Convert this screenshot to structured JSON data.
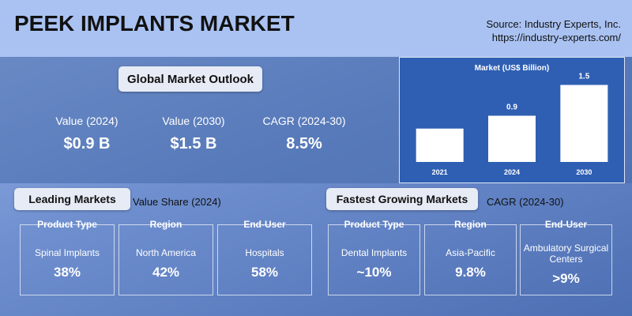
{
  "header": {
    "title": "PEEK IMPLANTS MARKET",
    "source": "Source: Industry Experts, Inc.",
    "url": "https://industry-experts.com/"
  },
  "outlook": {
    "title": "Global Market Outlook",
    "stats": [
      {
        "label": "Value (2024)",
        "value": "$0.9 B"
      },
      {
        "label": "Value (2030)",
        "value": "$1.5 B"
      },
      {
        "label": "CAGR (2024-30)",
        "value": "8.5%"
      }
    ]
  },
  "chart_data": {
    "type": "bar",
    "title": "Market (US$ Billion)",
    "categories": [
      "2021",
      "2024",
      "2030"
    ],
    "values": [
      0.65,
      0.9,
      1.5
    ],
    "value_labels": [
      null,
      "0.9",
      "1.5"
    ],
    "color": "#ffffff",
    "ylim": [
      0,
      1.6
    ]
  },
  "leading": {
    "title": "Leading Markets",
    "subtitle": "Value Share (2024)",
    "cards": [
      {
        "heading": "Product Type",
        "label": "Spinal Implants",
        "value": "38%"
      },
      {
        "heading": "Region",
        "label": "North America",
        "value": "42%"
      },
      {
        "heading": "End-User",
        "label": "Hospitals",
        "value": "58%"
      }
    ]
  },
  "fastest": {
    "title": "Fastest Growing Markets",
    "subtitle": "CAGR (2024-30)",
    "cards": [
      {
        "heading": "Product Type",
        "label": "Dental Implants",
        "value": "~10%"
      },
      {
        "heading": "Region",
        "label": "Asia-Pacific",
        "value": "9.8%"
      },
      {
        "heading": "End-User",
        "label": "Ambulatory Surgical Centers",
        "value": ">9%"
      }
    ]
  }
}
